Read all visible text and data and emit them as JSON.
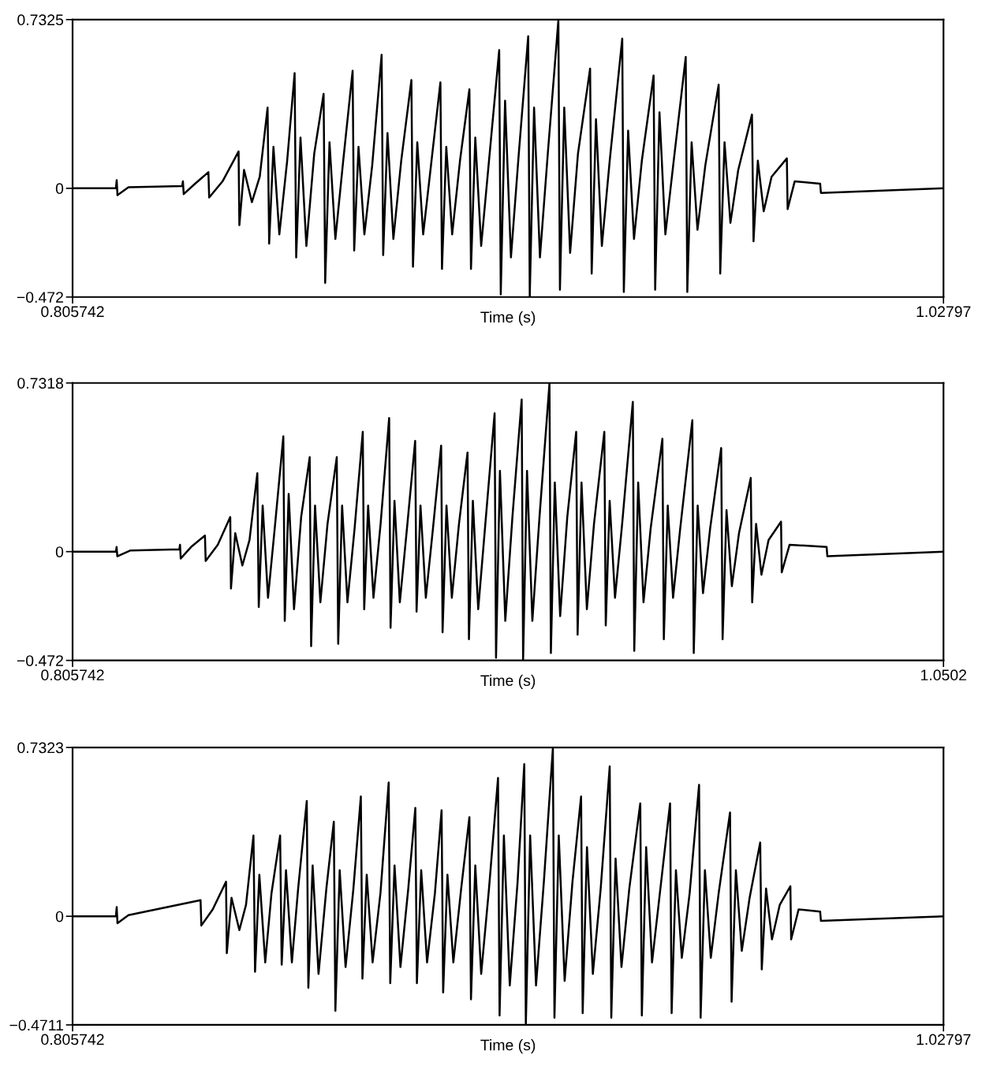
{
  "chart_data": [
    {
      "type": "line",
      "xlabel": "Time (s)",
      "xlim": [
        0.805742,
        1.02797
      ],
      "ylim": [
        -0.472,
        0.7325
      ],
      "xticks": [
        0.805742,
        1.02797
      ],
      "yticks": [
        -0.472,
        0,
        0.7325
      ],
      "grid": false,
      "legend": false,
      "x": [
        0.8058,
        0.8168,
        0.817,
        0.8172,
        0.82,
        0.8337,
        0.8339,
        0.8341,
        0.837,
        0.8404,
        0.8406,
        0.844,
        0.8481,
        0.8483,
        0.8495,
        0.8515,
        0.8535,
        0.8555,
        0.8559,
        0.857,
        0.8585,
        0.8605,
        0.8624,
        0.8628,
        0.8639,
        0.8654,
        0.8674,
        0.8698,
        0.8702,
        0.8713,
        0.8728,
        0.8748,
        0.8772,
        0.8776,
        0.8787,
        0.8802,
        0.8822,
        0.8846,
        0.885,
        0.8861,
        0.8876,
        0.8896,
        0.8922,
        0.8926,
        0.8937,
        0.8952,
        0.8972,
        0.8996,
        0.9,
        0.9011,
        0.9026,
        0.9046,
        0.907,
        0.9074,
        0.9085,
        0.91,
        0.912,
        0.9146,
        0.915,
        0.9161,
        0.9176,
        0.9196,
        0.922,
        0.9224,
        0.9235,
        0.925,
        0.927,
        0.9297,
        0.9301,
        0.9312,
        0.9327,
        0.9347,
        0.9378,
        0.9382,
        0.9393,
        0.9408,
        0.9428,
        0.946,
        0.9464,
        0.9475,
        0.949,
        0.951,
        0.954,
        0.9544,
        0.9555,
        0.957,
        0.959,
        0.9622,
        0.9626,
        0.9637,
        0.9652,
        0.9672,
        0.9706,
        0.971,
        0.9721,
        0.9736,
        0.9756,
        0.9791,
        0.9795,
        0.9806,
        0.9821,
        0.9841,
        0.988,
        0.9882,
        0.99,
        0.9965,
        0.9967,
        1.0279
      ],
      "series": [
        {
          "color": "#000000",
          "values": [
            0,
            0,
            0.035,
            -0.03,
            0.005,
            0.01,
            0.03,
            -0.025,
            0.02,
            0.07,
            -0.04,
            0.03,
            0.16,
            -0.16,
            0.08,
            -0.06,
            0.05,
            0.35,
            -0.24,
            0.18,
            -0.2,
            0.12,
            0.5,
            -0.3,
            0.22,
            -0.25,
            0.15,
            0.41,
            -0.41,
            0.2,
            -0.22,
            0.12,
            0.51,
            -0.27,
            0.18,
            -0.2,
            0.1,
            0.58,
            -0.29,
            0.24,
            -0.22,
            0.12,
            0.47,
            -0.34,
            0.2,
            -0.2,
            0.1,
            0.46,
            -0.35,
            0.18,
            -0.2,
            0.12,
            0.43,
            -0.35,
            0.22,
            -0.25,
            0.12,
            0.6,
            -0.46,
            0.38,
            -0.3,
            0.15,
            0.66,
            -0.47,
            0.35,
            -0.3,
            0.15,
            0.73,
            -0.44,
            0.35,
            -0.28,
            0.15,
            0.52,
            -0.37,
            0.3,
            -0.25,
            0.12,
            0.65,
            -0.45,
            0.25,
            -0.22,
            0.12,
            0.49,
            -0.44,
            0.33,
            -0.2,
            0.1,
            0.57,
            -0.45,
            0.2,
            -0.18,
            0.1,
            0.45,
            -0.37,
            0.2,
            -0.15,
            0.08,
            0.32,
            -0.23,
            0.12,
            -0.1,
            0.05,
            0.13,
            -0.09,
            0.03,
            0.02,
            -0.02,
            0
          ]
        }
      ]
    },
    {
      "type": "line",
      "xlabel": "Time (s)",
      "xlim": [
        0.805742,
        1.0502
      ],
      "ylim": [
        -0.472,
        0.7318
      ],
      "xticks": [
        0.805742,
        1.0502
      ],
      "yticks": [
        -0.472,
        0,
        0.7318
      ],
      "grid": false,
      "legend": false,
      "x": [
        0.8058,
        0.8179,
        0.8181,
        0.8183,
        0.822,
        0.8357,
        0.8359,
        0.8361,
        0.839,
        0.8429,
        0.8431,
        0.8465,
        0.85,
        0.8502,
        0.8514,
        0.8534,
        0.8554,
        0.8576,
        0.858,
        0.8591,
        0.8606,
        0.8626,
        0.8649,
        0.8653,
        0.8664,
        0.8679,
        0.8699,
        0.8723,
        0.8727,
        0.8738,
        0.8753,
        0.8773,
        0.8799,
        0.8803,
        0.8814,
        0.8829,
        0.8849,
        0.8872,
        0.8876,
        0.8887,
        0.8902,
        0.8922,
        0.8946,
        0.895,
        0.8961,
        0.8976,
        0.8996,
        0.9019,
        0.9023,
        0.9034,
        0.9049,
        0.9069,
        0.9092,
        0.9096,
        0.9107,
        0.9122,
        0.9142,
        0.9166,
        0.917,
        0.9181,
        0.9196,
        0.9216,
        0.9242,
        0.9246,
        0.9257,
        0.9272,
        0.9292,
        0.9318,
        0.9322,
        0.9333,
        0.9348,
        0.9368,
        0.9396,
        0.94,
        0.9411,
        0.9426,
        0.9446,
        0.9471,
        0.9475,
        0.9486,
        0.9501,
        0.9521,
        0.955,
        0.9554,
        0.9565,
        0.958,
        0.96,
        0.963,
        0.9634,
        0.9645,
        0.966,
        0.968,
        0.9713,
        0.9717,
        0.9728,
        0.9743,
        0.9763,
        0.9797,
        0.9801,
        0.9812,
        0.9827,
        0.9847,
        0.9878,
        0.9882,
        0.9893,
        0.9908,
        0.9928,
        0.9961,
        0.9965,
        0.9976,
        0.9991,
        1.0011,
        1.0046,
        1.0048,
        1.007,
        1.0174,
        1.0176,
        1.0501
      ],
      "series": [
        {
          "color": "#000000",
          "values": [
            0,
            0,
            0.02,
            -0.02,
            0.005,
            0.01,
            0.03,
            -0.03,
            0.02,
            0.07,
            -0.04,
            0.03,
            0.15,
            -0.16,
            0.08,
            -0.06,
            0.05,
            0.34,
            -0.24,
            0.2,
            -0.2,
            0.12,
            0.5,
            -0.3,
            0.25,
            -0.25,
            0.15,
            0.41,
            -0.41,
            0.2,
            -0.22,
            0.12,
            0.41,
            -0.4,
            0.2,
            -0.22,
            0.1,
            0.52,
            -0.25,
            0.2,
            -0.2,
            0.12,
            0.58,
            -0.33,
            0.22,
            -0.22,
            0.1,
            0.48,
            -0.26,
            0.2,
            -0.2,
            0.1,
            0.46,
            -0.35,
            0.2,
            -0.2,
            0.12,
            0.43,
            -0.38,
            0.22,
            -0.25,
            0.12,
            0.6,
            -0.46,
            0.35,
            -0.3,
            0.15,
            0.66,
            -0.47,
            0.35,
            -0.3,
            0.15,
            0.73,
            -0.44,
            0.3,
            -0.28,
            0.15,
            0.52,
            -0.36,
            0.3,
            -0.25,
            0.12,
            0.52,
            -0.32,
            0.22,
            -0.2,
            0.12,
            0.65,
            -0.43,
            0.3,
            -0.22,
            0.1,
            0.49,
            -0.38,
            0.2,
            -0.2,
            0.1,
            0.57,
            -0.44,
            0.2,
            -0.18,
            0.1,
            0.45,
            -0.38,
            0.18,
            -0.15,
            0.08,
            0.32,
            -0.22,
            0.12,
            -0.1,
            0.05,
            0.13,
            -0.09,
            0.03,
            0.02,
            -0.02,
            0
          ]
        }
      ]
    },
    {
      "type": "line",
      "xlabel": "Time (s)",
      "xlim": [
        0.805742,
        1.02797
      ],
      "ylim": [
        -0.4711,
        0.7323
      ],
      "xticks": [
        0.805742,
        1.02797
      ],
      "yticks": [
        -0.4711,
        0,
        0.7323
      ],
      "grid": false,
      "legend": false,
      "x": [
        0.8058,
        0.8168,
        0.817,
        0.8172,
        0.82,
        0.8384,
        0.8386,
        0.8415,
        0.8449,
        0.8451,
        0.8463,
        0.8483,
        0.85,
        0.8519,
        0.8523,
        0.8534,
        0.8549,
        0.8565,
        0.8587,
        0.8591,
        0.8602,
        0.8617,
        0.8633,
        0.8655,
        0.8659,
        0.867,
        0.8685,
        0.8705,
        0.8724,
        0.8728,
        0.8739,
        0.8754,
        0.8774,
        0.8793,
        0.8797,
        0.8808,
        0.8823,
        0.8843,
        0.8864,
        0.8868,
        0.8879,
        0.8894,
        0.8914,
        0.8932,
        0.8936,
        0.8947,
        0.8962,
        0.8982,
        0.8999,
        0.9003,
        0.9014,
        0.9029,
        0.9049,
        0.907,
        0.9074,
        0.9085,
        0.91,
        0.912,
        0.9143,
        0.9147,
        0.9158,
        0.9173,
        0.9193,
        0.921,
        0.9214,
        0.9225,
        0.924,
        0.926,
        0.9283,
        0.9287,
        0.9298,
        0.9313,
        0.9333,
        0.9355,
        0.9359,
        0.937,
        0.9385,
        0.9405,
        0.9428,
        0.9432,
        0.9443,
        0.9458,
        0.9478,
        0.9506,
        0.951,
        0.9521,
        0.9536,
        0.9556,
        0.9582,
        0.9586,
        0.9597,
        0.9612,
        0.9632,
        0.9656,
        0.966,
        0.9671,
        0.9686,
        0.9706,
        0.9735,
        0.9739,
        0.975,
        0.9765,
        0.9785,
        0.9812,
        0.9816,
        0.9827,
        0.9842,
        0.9862,
        0.9889,
        0.9891,
        0.991,
        0.9965,
        0.9967,
        1.0279
      ],
      "series": [
        {
          "color": "#000000",
          "values": [
            0,
            0,
            0.04,
            -0.03,
            0.005,
            0.07,
            -0.04,
            0.03,
            0.15,
            -0.16,
            0.08,
            -0.06,
            0.05,
            0.35,
            -0.24,
            0.18,
            -0.2,
            0.1,
            0.35,
            -0.21,
            0.2,
            -0.2,
            0.12,
            0.5,
            -0.31,
            0.22,
            -0.25,
            0.12,
            0.41,
            -0.41,
            0.2,
            -0.22,
            0.12,
            0.52,
            -0.27,
            0.18,
            -0.2,
            0.1,
            0.58,
            -0.29,
            0.22,
            -0.22,
            0.12,
            0.47,
            -0.29,
            0.2,
            -0.2,
            0.1,
            0.46,
            -0.33,
            0.18,
            -0.2,
            0.12,
            0.43,
            -0.36,
            0.22,
            -0.25,
            0.12,
            0.6,
            -0.43,
            0.35,
            -0.3,
            0.15,
            0.66,
            -0.47,
            0.35,
            -0.3,
            0.15,
            0.73,
            -0.44,
            0.35,
            -0.28,
            0.15,
            0.52,
            -0.42,
            0.3,
            -0.25,
            0.12,
            0.65,
            -0.44,
            0.25,
            -0.22,
            0.12,
            0.49,
            -0.43,
            0.3,
            -0.2,
            0.1,
            0.49,
            -0.42,
            0.2,
            -0.18,
            0.1,
            0.57,
            -0.44,
            0.2,
            -0.18,
            0.1,
            0.45,
            -0.37,
            0.2,
            -0.15,
            0.08,
            0.32,
            -0.23,
            0.12,
            -0.1,
            0.05,
            0.13,
            -0.1,
            0.03,
            0.02,
            -0.02,
            0
          ]
        }
      ]
    }
  ]
}
